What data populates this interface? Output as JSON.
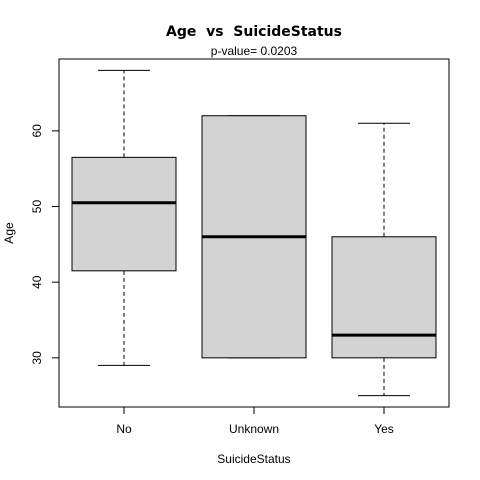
{
  "chart_data": {
    "type": "boxplot",
    "title": "Age  vs  SuicideStatus",
    "subtitle": "p-value= 0.0203",
    "xlabel": "SuicideStatus",
    "ylabel": "Age",
    "categories": [
      "No",
      "Unknown",
      "Yes"
    ],
    "ylim": [
      23.5,
      69.5
    ],
    "yticks": [
      30,
      40,
      50,
      60
    ],
    "boxes": [
      {
        "name": "No",
        "whisker_low": 29,
        "q1": 41.5,
        "median": 50.5,
        "q3": 56.5,
        "whisker_high": 68
      },
      {
        "name": "Unknown",
        "whisker_low": 30,
        "q1": 30,
        "median": 46,
        "q3": 62,
        "whisker_high": 62
      },
      {
        "name": "Yes",
        "whisker_low": 25,
        "q1": 30,
        "median": 33,
        "q3": 46,
        "whisker_high": 61
      }
    ],
    "box_fill": "#d3d3d3",
    "line_color": "#000000",
    "grid": false,
    "legend": "none"
  }
}
